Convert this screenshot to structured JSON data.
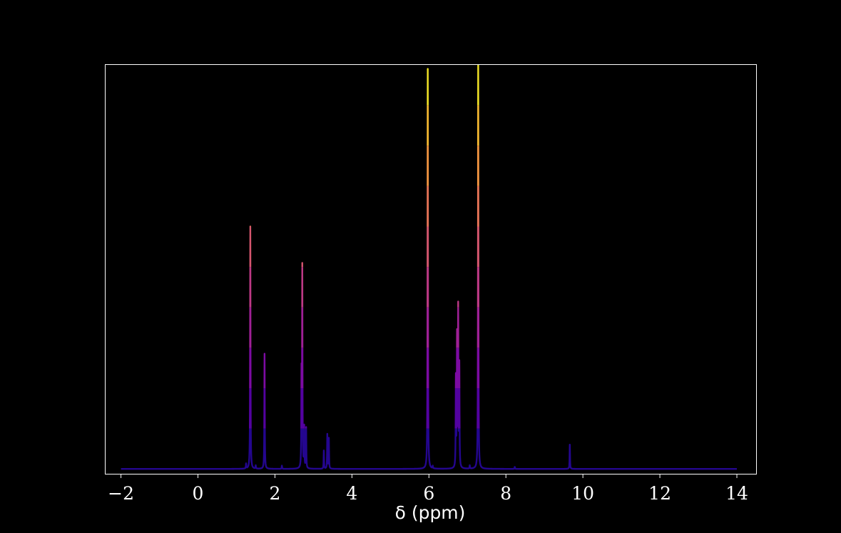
{
  "chart_data": {
    "type": "line",
    "title": "",
    "xlabel": "δ (ppm)",
    "ylabel": "",
    "xlim": [
      -2.4,
      14.5
    ],
    "ylim": [
      -0.012,
      1.0
    ],
    "x_ticks": [
      -2,
      0,
      2,
      4,
      6,
      8,
      10,
      12,
      14
    ],
    "x_tick_labels": [
      "−2",
      "0",
      "2",
      "4",
      "6",
      "8",
      "10",
      "12",
      "14"
    ],
    "y_ticks_visible": false,
    "grid": false,
    "legend": "none",
    "background": "#000000",
    "frame_color": "#ffffff",
    "colormap": [
      "#0d0887",
      "#6a00a8",
      "#b12a90",
      "#e16462",
      "#fca636",
      "#f0f921"
    ],
    "baseline": 0.0,
    "peaks": [
      {
        "x": 1.25,
        "y": 0.012
      },
      {
        "x": 1.36,
        "y": 0.6
      },
      {
        "x": 1.5,
        "y": 0.008
      },
      {
        "x": 1.73,
        "y": 0.285
      },
      {
        "x": 2.18,
        "y": 0.008
      },
      {
        "x": 2.69,
        "y": 0.22
      },
      {
        "x": 2.71,
        "y": 0.49
      },
      {
        "x": 2.76,
        "y": 0.1
      },
      {
        "x": 2.81,
        "y": 0.1
      },
      {
        "x": 3.27,
        "y": 0.045
      },
      {
        "x": 3.36,
        "y": 0.085
      },
      {
        "x": 3.4,
        "y": 0.075
      },
      {
        "x": 5.97,
        "y": 0.99
      },
      {
        "x": 6.1,
        "y": 0.006
      },
      {
        "x": 6.7,
        "y": 0.22
      },
      {
        "x": 6.73,
        "y": 0.32
      },
      {
        "x": 6.76,
        "y": 0.39
      },
      {
        "x": 6.79,
        "y": 0.25
      },
      {
        "x": 7.06,
        "y": 0.008
      },
      {
        "x": 7.28,
        "y": 1.0
      },
      {
        "x": 8.23,
        "y": 0.005
      },
      {
        "x": 9.66,
        "y": 0.06
      }
    ]
  }
}
